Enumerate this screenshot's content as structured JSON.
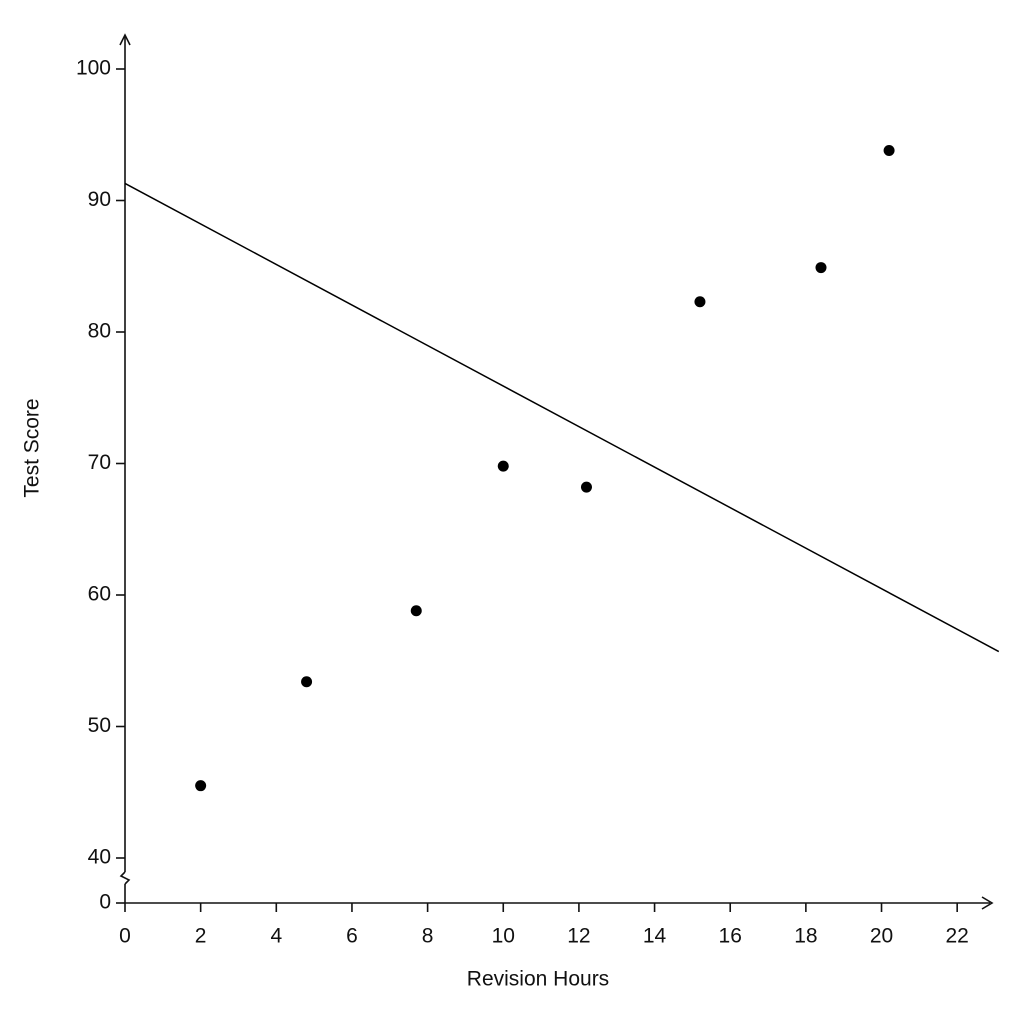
{
  "chart_data": {
    "type": "scatter",
    "x_label": "Revision Hours",
    "y_label": "Test Score",
    "x": [
      2,
      4.8,
      7.7,
      10,
      12.2,
      15.2,
      18.4,
      20.2
    ],
    "values": [
      45.5,
      53.4,
      58.8,
      69.8,
      68.2,
      82.3,
      84.9,
      93.8
    ],
    "color": "#000000",
    "line": {
      "x": [
        0,
        23.1
      ],
      "y": [
        91.3,
        55.7
      ],
      "color": "#000000"
    },
    "xlim": [
      0,
      23
    ],
    "xticks": [
      0,
      2,
      4,
      6,
      8,
      10,
      12,
      14,
      16,
      18,
      20,
      22
    ],
    "ylim": [
      40,
      100
    ],
    "yticks": [
      0,
      40,
      50,
      60,
      70,
      80,
      90,
      100
    ],
    "axis_break": true
  }
}
